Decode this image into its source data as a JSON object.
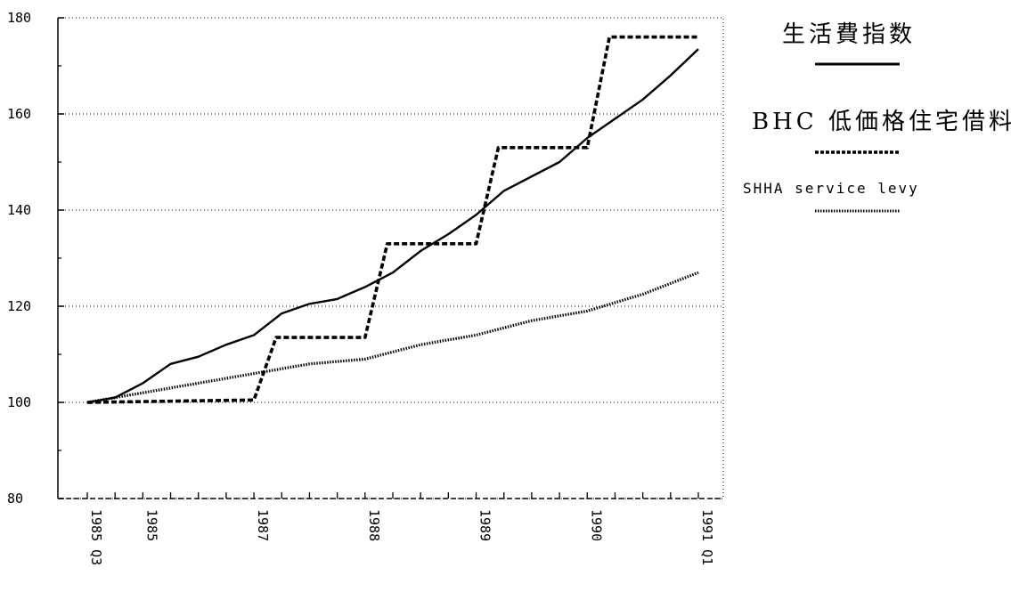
{
  "chart_data": {
    "type": "line",
    "title": "",
    "xlabel": "",
    "ylabel": "",
    "ylim": [
      80,
      180
    ],
    "y_ticks": [
      80,
      100,
      120,
      140,
      160,
      180
    ],
    "x_range": [
      0,
      22
    ],
    "x_tick_labels": [
      {
        "x": 0,
        "label": "1985 Q3"
      },
      {
        "x": 2,
        "label": "1985"
      },
      {
        "x": 6,
        "label": "1987"
      },
      {
        "x": 10,
        "label": "1988"
      },
      {
        "x": 14,
        "label": "1989"
      },
      {
        "x": 18,
        "label": "1990"
      },
      {
        "x": 22,
        "label": "1991 Q1"
      }
    ],
    "grid": true,
    "legend_position": "right",
    "series": [
      {
        "name": "生活費指数",
        "style": "solid",
        "color": "#000000",
        "x": [
          0,
          1,
          2,
          3,
          4,
          5,
          6,
          7,
          8,
          9,
          10,
          11,
          12,
          13,
          14,
          15,
          16,
          17,
          18,
          19,
          20,
          21,
          22
        ],
        "values": [
          100,
          101,
          104,
          108,
          109.5,
          112,
          114,
          118.5,
          120.5,
          121.5,
          124,
          127,
          131.5,
          135,
          139,
          144,
          147,
          150,
          155,
          159,
          163,
          168,
          173.5
        ]
      },
      {
        "name": "BHC 低価格住宅借料",
        "style": "dashed",
        "color": "#000000",
        "x": [
          0,
          6,
          6.8,
          10,
          10.8,
          14,
          14.8,
          18,
          18.8,
          22
        ],
        "values": [
          100,
          100.5,
          113.5,
          113.5,
          133,
          133,
          153,
          153,
          176,
          176
        ]
      },
      {
        "name": "SHHA service levy",
        "style": "dotted",
        "color": "#000000",
        "x": [
          0,
          2,
          4,
          6,
          8,
          10,
          12,
          14,
          16,
          18,
          20,
          22
        ],
        "values": [
          100,
          102,
          104,
          106,
          108,
          109,
          112,
          114,
          117,
          119,
          122.5,
          127
        ]
      }
    ]
  }
}
